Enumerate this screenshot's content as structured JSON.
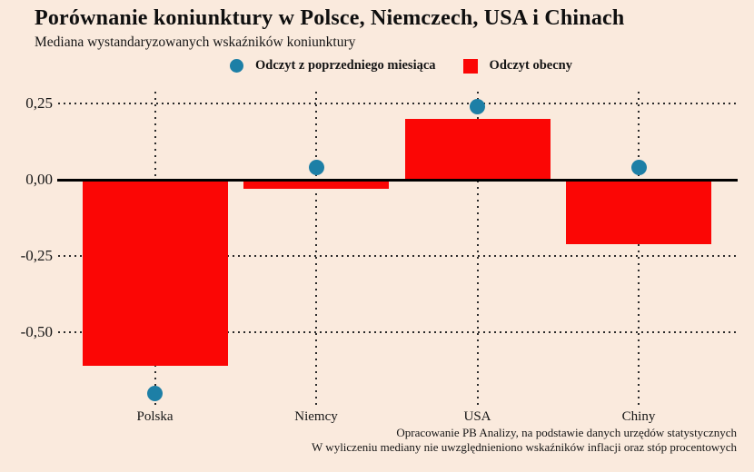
{
  "chart_data": {
    "type": "bar",
    "title": "Porównanie koniunktury w Polsce, Niemczech, USA i Chinach",
    "subtitle": "Mediana wystandaryzowanych wskaźników koniunktury",
    "categories": [
      "Polska",
      "Niemcy",
      "USA",
      "Chiny"
    ],
    "series": [
      {
        "name": "Odczyt z poprzedniego miesiąca",
        "type": "scatter",
        "marker": "circle",
        "color": "#1d7fa6",
        "values": [
          -0.7,
          0.04,
          0.24,
          0.04
        ]
      },
      {
        "name": "Odczyt obecny",
        "type": "bar",
        "marker": "square",
        "color": "#fb0605",
        "values": [
          -0.61,
          -0.03,
          0.2,
          -0.21
        ]
      }
    ],
    "yticks": [
      {
        "label": "0,25",
        "value": 0.25
      },
      {
        "label": "0,00",
        "value": 0.0
      },
      {
        "label": "-0,25",
        "value": -0.25
      },
      {
        "label": "-0,50",
        "value": -0.5
      }
    ],
    "ylim": [
      -0.73,
      0.31
    ],
    "grid": "dotted",
    "legend_position": "top",
    "footnotes": [
      "Opracowanie PB Analizy, na podstawie danych urzędów statystycznych",
      "W wyliczeniu mediany nie uwzględnieniono wskaźników inflacji oraz stóp procentowych"
    ]
  },
  "colors": {
    "background": "#faeadd",
    "text": "#1a1a1a",
    "grid": "#2b2b2b",
    "axis": "#000000"
  }
}
